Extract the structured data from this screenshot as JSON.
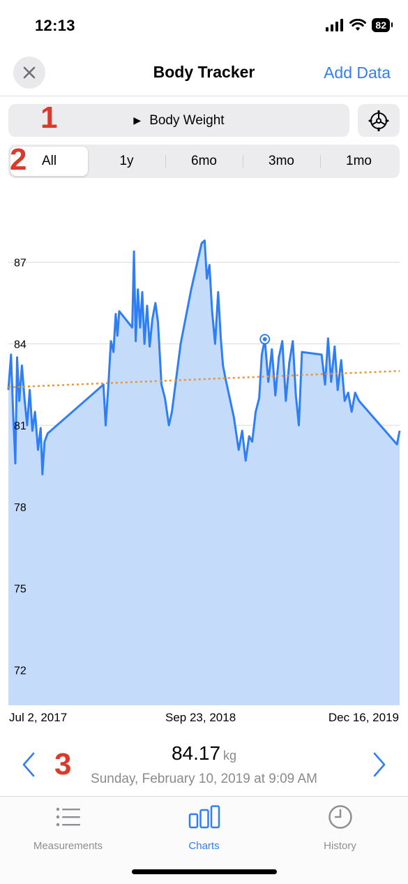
{
  "status_bar": {
    "time": "12:13",
    "battery": "82"
  },
  "nav": {
    "title": "Body Tracker",
    "add_data_label": "Add Data",
    "close_icon": "close-icon"
  },
  "badges": {
    "one": "1",
    "two": "2",
    "three": "3"
  },
  "selector": {
    "label": "Body Weight",
    "icon": "play-icon",
    "settings_icon": "gear-icon"
  },
  "segments": [
    "All",
    "1y",
    "6mo",
    "3mo",
    "1mo"
  ],
  "selected_segment": "All",
  "chart_data": {
    "type": "area",
    "x_labels": [
      "Jul 2, 2017",
      "Sep 23, 2018",
      "Dec 16, 2019"
    ],
    "y_ticks": [
      87,
      84,
      81,
      78,
      75,
      72
    ],
    "ylim": [
      70.7,
      89.2
    ],
    "xlim": [
      "2017-07-02",
      "2019-12-16"
    ],
    "series": [
      {
        "values": [
          [
            "2017-07-02",
            82.3
          ],
          [
            "2017-07-08",
            83.6
          ],
          [
            "2017-07-13",
            81.4
          ],
          [
            "2017-07-18",
            79.6
          ],
          [
            "2017-07-22",
            83.5
          ],
          [
            "2017-07-27",
            81.9
          ],
          [
            "2017-08-02",
            83.2
          ],
          [
            "2017-08-08",
            82.0
          ],
          [
            "2017-08-14",
            81.0
          ],
          [
            "2017-08-20",
            82.3
          ],
          [
            "2017-08-26",
            80.8
          ],
          [
            "2017-09-01",
            81.5
          ],
          [
            "2017-09-08",
            80.1
          ],
          [
            "2017-09-14",
            80.9
          ],
          [
            "2017-09-18",
            79.2
          ],
          [
            "2017-09-23",
            80.4
          ],
          [
            "2017-09-30",
            80.7
          ],
          [
            "2018-02-05",
            82.5
          ],
          [
            "2018-02-10",
            81.0
          ],
          [
            "2018-02-16",
            82.4
          ],
          [
            "2018-02-22",
            84.1
          ],
          [
            "2018-02-28",
            83.7
          ],
          [
            "2018-03-05",
            85.1
          ],
          [
            "2018-03-09",
            84.3
          ],
          [
            "2018-03-13",
            85.2
          ],
          [
            "2018-04-12",
            84.6
          ],
          [
            "2018-04-16",
            87.4
          ],
          [
            "2018-04-20",
            84.1
          ],
          [
            "2018-04-25",
            86.0
          ],
          [
            "2018-04-30",
            84.6
          ],
          [
            "2018-05-05",
            85.9
          ],
          [
            "2018-05-10",
            84.0
          ],
          [
            "2018-05-16",
            85.4
          ],
          [
            "2018-05-22",
            83.9
          ],
          [
            "2018-05-28",
            84.9
          ],
          [
            "2018-06-04",
            85.5
          ],
          [
            "2018-06-10",
            84.8
          ],
          [
            "2018-06-18",
            82.5
          ],
          [
            "2018-06-26",
            82.0
          ],
          [
            "2018-07-05",
            81.0
          ],
          [
            "2018-07-12",
            81.5
          ],
          [
            "2018-08-01",
            84.0
          ],
          [
            "2018-08-25",
            86.0
          ],
          [
            "2018-09-18",
            87.7
          ],
          [
            "2018-09-25",
            87.8
          ],
          [
            "2018-09-30",
            86.4
          ],
          [
            "2018-10-06",
            86.9
          ],
          [
            "2018-10-12",
            85.2
          ],
          [
            "2018-10-19",
            84.0
          ],
          [
            "2018-10-26",
            85.9
          ],
          [
            "2018-11-01",
            84.2
          ],
          [
            "2018-11-06",
            83.2
          ],
          [
            "2018-11-12",
            82.7
          ],
          [
            "2018-12-01",
            81.3
          ],
          [
            "2018-12-12",
            80.1
          ],
          [
            "2018-12-20",
            80.8
          ],
          [
            "2018-12-28",
            79.7
          ],
          [
            "2019-01-05",
            80.6
          ],
          [
            "2019-01-12",
            80.4
          ],
          [
            "2019-01-20",
            81.5
          ],
          [
            "2019-01-28",
            82.0
          ],
          [
            "2019-02-03",
            83.6
          ],
          [
            "2019-02-10",
            84.17
          ],
          [
            "2019-02-18",
            82.6
          ],
          [
            "2019-02-26",
            83.8
          ],
          [
            "2019-03-06",
            82.1
          ],
          [
            "2019-03-14",
            83.5
          ],
          [
            "2019-03-22",
            84.1
          ],
          [
            "2019-03-30",
            81.9
          ],
          [
            "2019-04-07",
            83.3
          ],
          [
            "2019-04-15",
            84.1
          ],
          [
            "2019-04-22",
            82.1
          ],
          [
            "2019-04-29",
            81.0
          ],
          [
            "2019-05-06",
            83.7
          ],
          [
            "2019-06-20",
            83.6
          ],
          [
            "2019-06-28",
            82.5
          ],
          [
            "2019-07-05",
            84.2
          ],
          [
            "2019-07-12",
            82.6
          ],
          [
            "2019-07-20",
            83.9
          ],
          [
            "2019-07-27",
            82.3
          ],
          [
            "2019-08-04",
            83.4
          ],
          [
            "2019-08-12",
            81.9
          ],
          [
            "2019-08-20",
            82.2
          ],
          [
            "2019-08-28",
            81.5
          ],
          [
            "2019-09-05",
            82.2
          ],
          [
            "2019-09-14",
            81.9
          ],
          [
            "2019-12-10",
            80.3
          ],
          [
            "2019-12-16",
            80.8
          ]
        ]
      }
    ],
    "trend": {
      "style": "dotted",
      "color": "#f0922e",
      "start": [
        "2017-07-02",
        82.4
      ],
      "end": [
        "2019-12-16",
        83.0
      ]
    },
    "selected_point": [
      "2019-02-10",
      84.17
    ],
    "line_color": "#2f7ef5",
    "fill_color": "#c4dcfa",
    "grid": true
  },
  "reading": {
    "value": "84.17",
    "unit": "kg",
    "date": "Sunday, February 10, 2019 at 9:09 AM",
    "prev_icon": "chevron-left-icon",
    "next_icon": "chevron-right-icon"
  },
  "tabs": [
    {
      "label": "Measurements",
      "icon": "list-icon",
      "active": false
    },
    {
      "label": "Charts",
      "icon": "bar-chart-icon",
      "active": true
    },
    {
      "label": "History",
      "icon": "clock-icon",
      "active": false
    }
  ],
  "colors": {
    "accent": "#2f7ef5",
    "badge": "#d93a2b"
  }
}
